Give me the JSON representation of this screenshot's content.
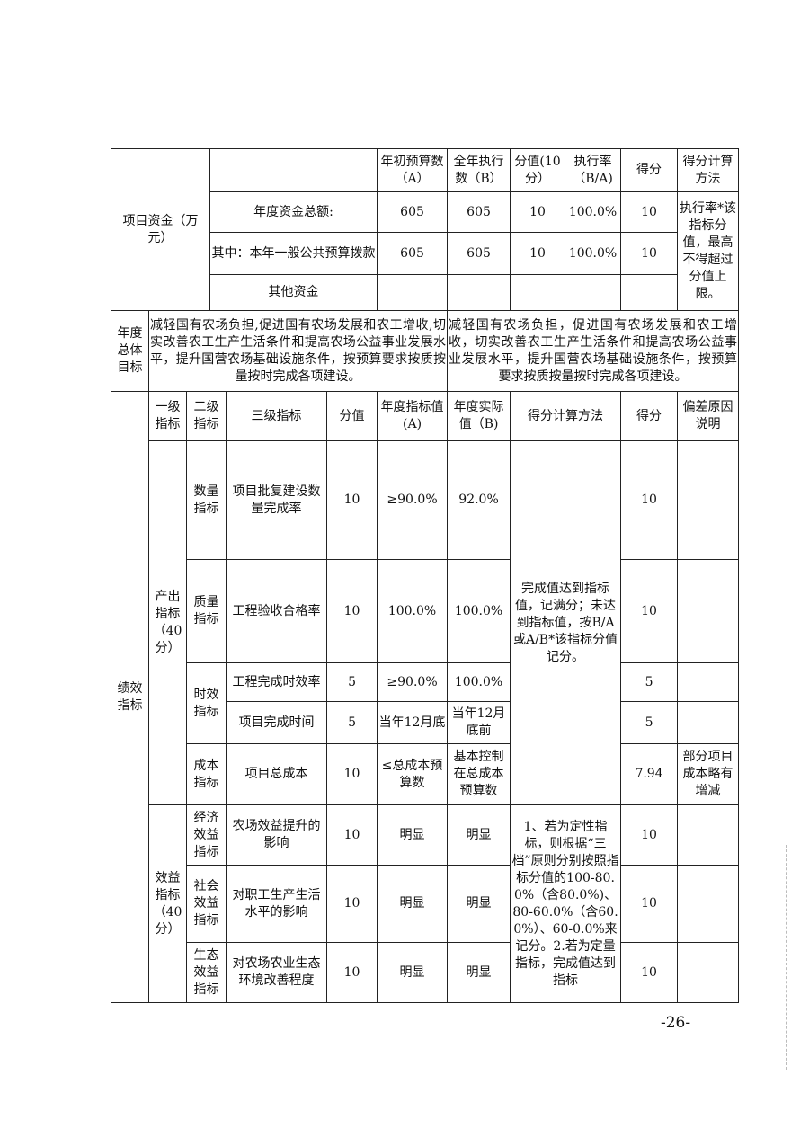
{
  "funds": {
    "label": "项目资金（万元）",
    "headers": [
      "年初预算数（A）",
      "全年执行数（B）",
      "分值(10分）",
      "执行率（B/A)",
      "得分",
      "得分计算方法"
    ],
    "rows": [
      {
        "name": "年度资金总额:",
        "a": "605",
        "b": "605",
        "score_value": "10",
        "rate": "100.0%",
        "score": "10"
      },
      {
        "name": "其中：本年一般公共预算拨款",
        "a": "605",
        "b": "605",
        "score_value": "10",
        "rate": "100.0%",
        "score": "10"
      },
      {
        "name": "其他资金",
        "a": "",
        "b": "",
        "score_value": "",
        "rate": "",
        "score": ""
      }
    ],
    "method": "执行率*该指标分值，最高不得超过分值上限。"
  },
  "goal": {
    "label": "年度总体目标",
    "planned": "减轻国有农场负担,促进国有农场发展和农工增收,切实改善农工生产生活条件和提高农场公益事业发展水平，提升国营农场基础设施条件，按预算要求按质按量按时完成各项建设。",
    "actual": "减轻国有农场负担，促进国有农场发展和农工增收，切实改善农工生产生活条件和提高农场公益事业发展水平，提升国营农场基础设施条件，按预算要求按质按量按时完成各项建设。"
  },
  "perf": {
    "label": "绩效指标",
    "headers": [
      "一级指标",
      "二级指标",
      "三级指标",
      "分值",
      "年度指标值(A)",
      "年度实际值（B)",
      "得分计算方法",
      "得分",
      "偏差原因说明"
    ],
    "output_label": "产出指标（40分）",
    "benefit_label": "效益指标（40分）",
    "method_output": "完成值达到指标值，记满分；未达到指标值，按B/A或A/B*该指标分值记分。",
    "method_benefit": "1、若为定性指标，则根据“三档”原则分别按照指标分值的100-80.0%（含80.0%)、80-60.0%（含60.0%）、60-0.0%来记分。2.若为定量指标，完成值达到指标",
    "level2": {
      "quantity": "数量指标",
      "quality": "质量指标",
      "time": "时效指标",
      "cost": "成本指标",
      "economic": "经济效益指标",
      "social": "社会效益指标",
      "ecology": "生态效益指标"
    },
    "rows": [
      {
        "l3": "项目批复建设数量完成率",
        "value": "10",
        "target": "≥90.0%",
        "actual": "92.0%",
        "score": "10",
        "note": ""
      },
      {
        "l3": "工程验收合格率",
        "value": "10",
        "target": "100.0%",
        "actual": "100.0%",
        "score": "10",
        "note": ""
      },
      {
        "l3": "工程完成时效率",
        "value": "5",
        "target": "≥90.0%",
        "actual": "100.0%",
        "score": "5",
        "note": ""
      },
      {
        "l3": "项目完成时间",
        "value": "5",
        "target": "当年12月底",
        "actual": "当年12月底前",
        "score": "5",
        "note": ""
      },
      {
        "l3": "项目总成本",
        "value": "10",
        "target": "≤总成本预算数",
        "actual": "基本控制在总成本预算数",
        "score": "7.94",
        "note": "部分项目成本略有增减"
      },
      {
        "l3": "农场效益提升的影响",
        "value": "10",
        "target": "明显",
        "actual": "明显",
        "score": "10",
        "note": ""
      },
      {
        "l3": "对职工生产生活水平的影响",
        "value": "10",
        "target": "明显",
        "actual": "明显",
        "score": "10",
        "note": ""
      },
      {
        "l3": "对农场农业生态环境改善程度",
        "value": "10",
        "target": "明显",
        "actual": "明显",
        "score": "10",
        "note": ""
      }
    ]
  },
  "page_number": "-26-"
}
